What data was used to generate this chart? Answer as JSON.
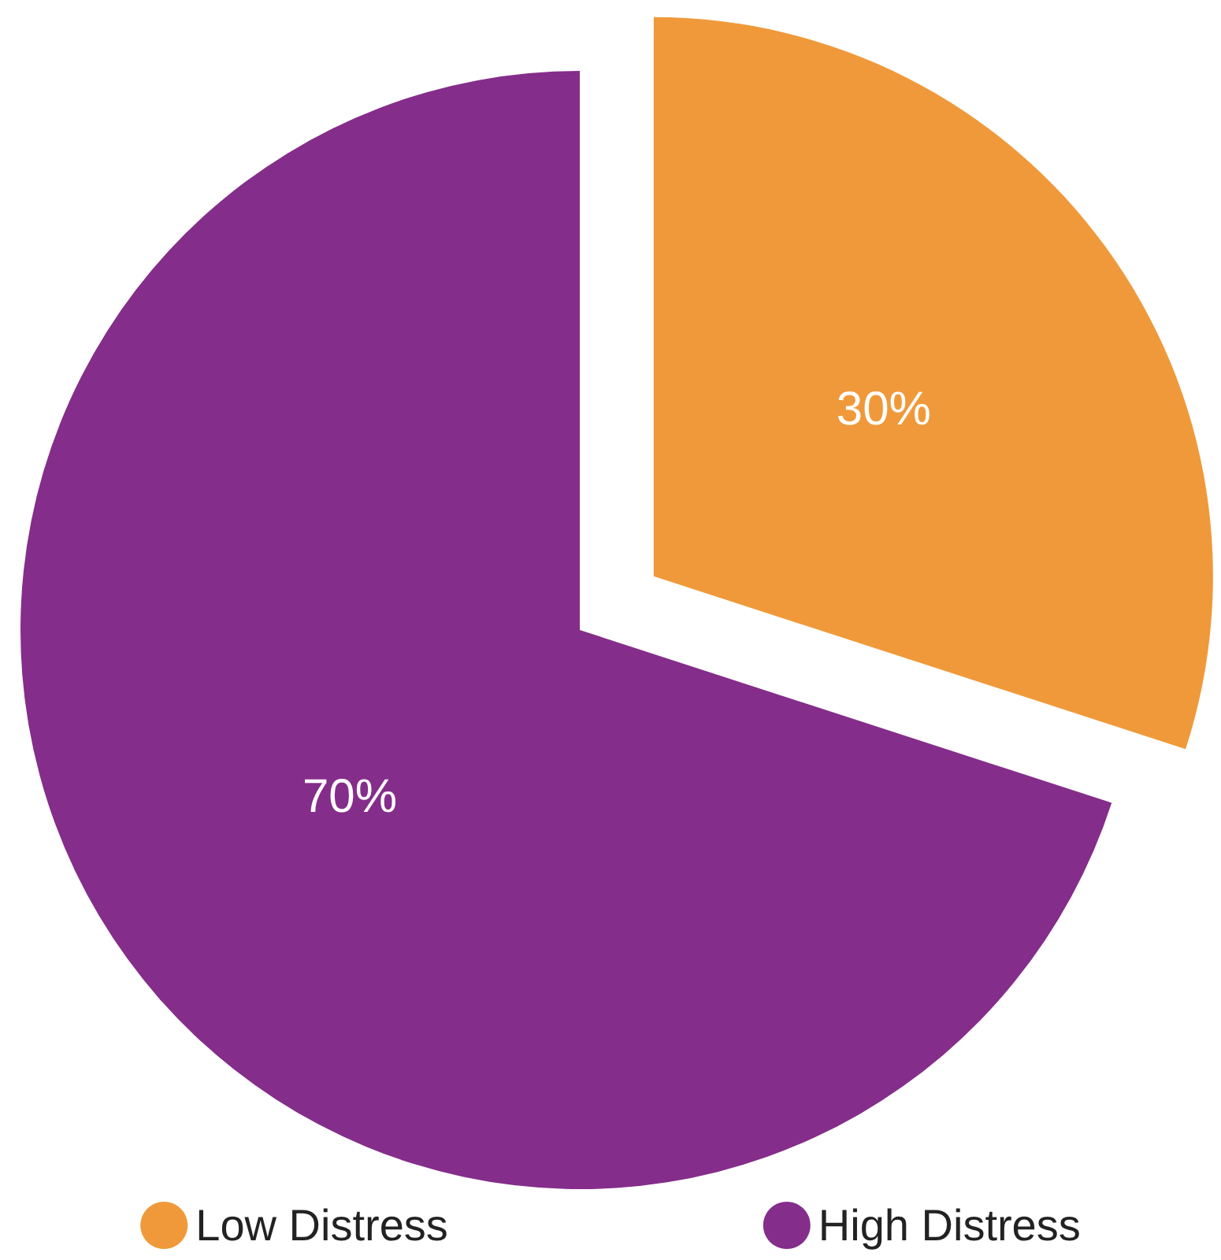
{
  "chart_data": {
    "type": "pie",
    "categories": [
      "Low Distress",
      "High Distress"
    ],
    "values": [
      30,
      70
    ],
    "colors": [
      "#f0993a",
      "#852d8a"
    ],
    "value_labels": [
      "30%",
      "70%"
    ],
    "legend": "bottom"
  }
}
